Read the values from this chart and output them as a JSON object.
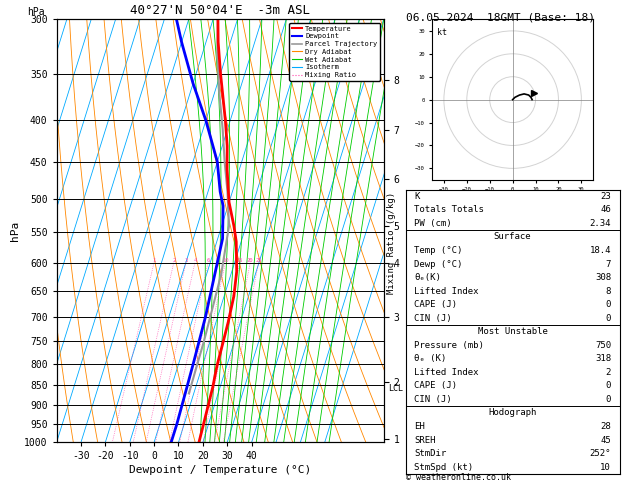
{
  "title_skewt": "40°27'N 50°04'E  -3m ASL",
  "title_right": "06.05.2024  18GMT (Base: 18)",
  "xlabel": "Dewpoint / Temperature (°C)",
  "ylabel_left": "hPa",
  "pressure_levels": [
    300,
    350,
    400,
    450,
    500,
    550,
    600,
    650,
    700,
    750,
    800,
    850,
    900,
    950,
    1000
  ],
  "temp_min": -40,
  "temp_max": 40,
  "temp_ticks": [
    -30,
    -20,
    -10,
    0,
    10,
    20,
    30,
    40
  ],
  "pmin": 300,
  "pmax": 1000,
  "skew_factor": 1.0,
  "isotherm_color": "#00aaff",
  "dry_adiabat_color": "#ff8800",
  "wet_adiabat_color": "#00cc00",
  "mixing_ratio_color": "#ff44aa",
  "mixing_ratio_values": [
    1,
    2,
    3,
    4,
    6,
    8,
    10,
    15,
    20,
    25
  ],
  "temperature_profile_temp": [
    -28,
    -25,
    -20,
    -12,
    -8,
    -5,
    0,
    5,
    8,
    12,
    14,
    15,
    15.5,
    16,
    17,
    18,
    18.4
  ],
  "temperature_profile_pres": [
    300,
    320,
    350,
    400,
    430,
    460,
    505,
    540,
    565,
    615,
    660,
    710,
    755,
    805,
    855,
    955,
    1000
  ],
  "dewpoint_profile_temp": [
    -45,
    -40,
    -30,
    -20,
    -10,
    -5,
    -2,
    2,
    5,
    6,
    6.5,
    7,
    7
  ],
  "dewpoint_profile_pres": [
    300,
    320,
    360,
    400,
    450,
    490,
    510,
    560,
    700,
    800,
    870,
    950,
    1000
  ],
  "parcel_profile_temp": [
    -28,
    -24,
    -18,
    -12,
    -7,
    -2,
    3,
    6,
    7.5,
    8
  ],
  "parcel_profile_pres": [
    300,
    330,
    370,
    410,
    450,
    490,
    540,
    620,
    750,
    870
  ],
  "temp_color": "#ff0000",
  "dewpoint_color": "#0000ff",
  "parcel_color": "#999999",
  "km_ticks": [
    8,
    7,
    6,
    5,
    4,
    3,
    2,
    1
  ],
  "km_pressures": [
    356,
    411,
    472,
    540,
    600,
    700,
    843,
    990
  ],
  "lcl_pressure": 857,
  "mr_label_pressure": 600,
  "stats_K": 23,
  "stats_TT": 46,
  "stats_PW": 2.34,
  "stats_sfc_temp": 18.4,
  "stats_sfc_dewp": 7,
  "stats_sfc_thetae": 308,
  "stats_sfc_li": 8,
  "stats_sfc_cape": 0,
  "stats_sfc_cin": 0,
  "stats_mu_pres": 750,
  "stats_mu_thetae": 318,
  "stats_mu_li": 2,
  "stats_mu_cape": 0,
  "stats_mu_cin": 0,
  "stats_EH": 28,
  "stats_SREH": 45,
  "stats_StmDir": 252,
  "stats_StmSpd": 10,
  "copyright": "© weatheronline.co.uk"
}
